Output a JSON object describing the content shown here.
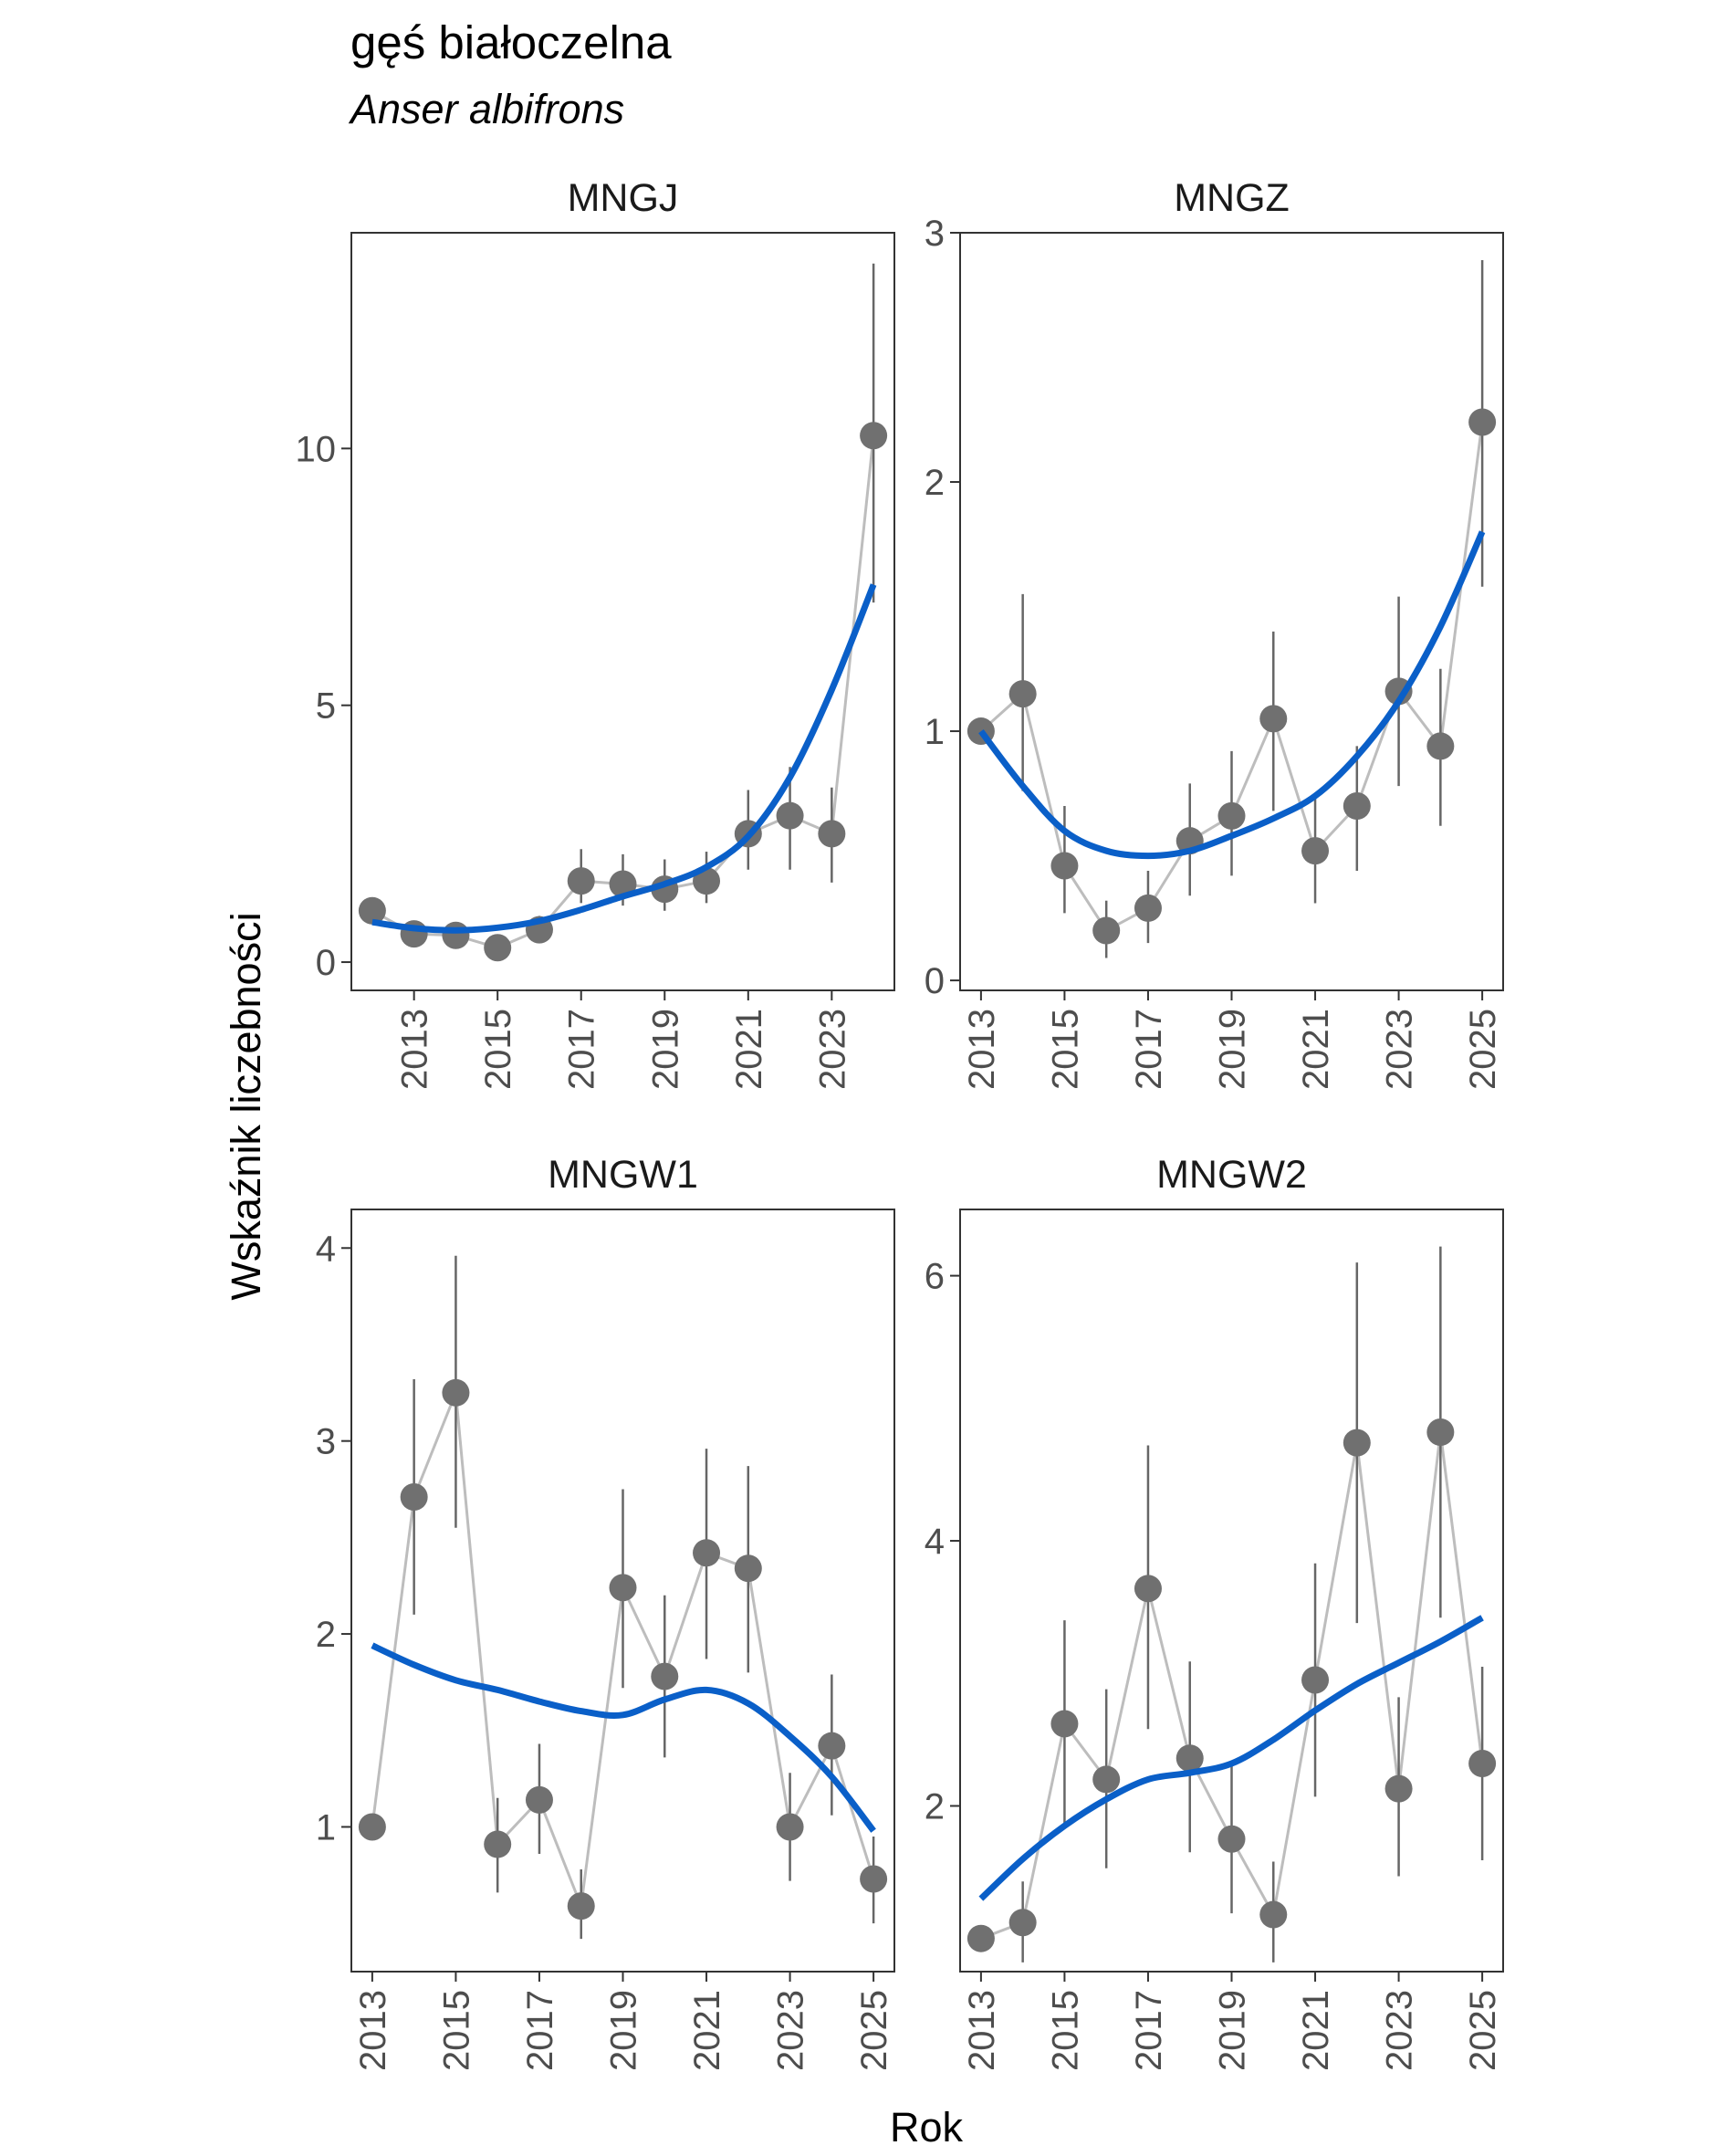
{
  "chart_data": {
    "type": "line",
    "title": "gęś białoczelna",
    "subtitle": "Anser albifrons",
    "xlabel": "Rok",
    "ylabel": "Wskaźnik liczebności",
    "colors": {
      "points": "#707070",
      "connector": "#bdbdbd",
      "errorbar": "#666666",
      "trend": "#0a5fc8"
    },
    "panels": [
      {
        "name": "MNGJ",
        "xlim": [
          2011.5,
          2024.5
        ],
        "ylim": [
          -0.55,
          14.2
        ],
        "x_ticks": [
          2013,
          2015,
          2017,
          2019,
          2021,
          2023
        ],
        "y_ticks": [
          0,
          5,
          10
        ],
        "x": [
          2012,
          2013,
          2014,
          2015,
          2016,
          2017,
          2018,
          2019,
          2020,
          2021,
          2022,
          2023,
          2024
        ],
        "values": [
          1.0,
          0.55,
          0.52,
          0.28,
          0.63,
          1.58,
          1.52,
          1.42,
          1.58,
          2.5,
          2.85,
          2.5,
          10.25
        ],
        "lower": [
          null,
          0.4,
          0.38,
          0.18,
          0.45,
          1.15,
          1.1,
          1.0,
          1.15,
          1.8,
          1.8,
          1.55,
          7.0
        ],
        "upper": [
          null,
          0.8,
          0.75,
          0.45,
          0.9,
          2.2,
          2.1,
          2.0,
          2.15,
          3.35,
          3.8,
          3.4,
          13.6
        ],
        "trend": [
          0.78,
          0.66,
          0.62,
          0.67,
          0.8,
          1.02,
          1.28,
          1.52,
          1.85,
          2.45,
          3.6,
          5.3,
          7.35
        ]
      },
      {
        "name": "MNGZ",
        "xlim": [
          2012.5,
          2025.5
        ],
        "ylim": [
          -0.04,
          3.0
        ],
        "x_ticks": [
          2013,
          2015,
          2017,
          2019,
          2021,
          2023,
          2025
        ],
        "y_ticks": [
          0,
          1,
          2,
          3
        ],
        "x": [
          2013,
          2014,
          2015,
          2016,
          2017,
          2018,
          2019,
          2020,
          2021,
          2022,
          2023,
          2024,
          2025
        ],
        "values": [
          1.0,
          1.15,
          0.46,
          0.2,
          0.29,
          0.56,
          0.66,
          1.05,
          0.52,
          0.7,
          1.16,
          0.94,
          2.24
        ],
        "lower": [
          null,
          0.76,
          0.27,
          0.09,
          0.15,
          0.34,
          0.42,
          0.68,
          0.31,
          0.44,
          0.78,
          0.62,
          1.58
        ],
        "upper": [
          null,
          1.55,
          0.7,
          0.32,
          0.44,
          0.79,
          0.92,
          1.4,
          0.75,
          0.94,
          1.54,
          1.25,
          2.89
        ],
        "trend": [
          1.0,
          0.78,
          0.6,
          0.52,
          0.5,
          0.52,
          0.58,
          0.65,
          0.74,
          0.9,
          1.12,
          1.42,
          1.8
        ]
      },
      {
        "name": "MNGW1",
        "xlim": [
          2012.5,
          2025.5
        ],
        "ylim": [
          0.25,
          4.2
        ],
        "x_ticks": [
          2013,
          2015,
          2017,
          2019,
          2021,
          2023,
          2025
        ],
        "y_ticks": [
          1,
          2,
          3,
          4
        ],
        "x": [
          2013,
          2014,
          2015,
          2016,
          2017,
          2018,
          2019,
          2020,
          2021,
          2022,
          2023,
          2024,
          2025
        ],
        "values": [
          1.0,
          2.71,
          3.25,
          0.91,
          1.14,
          0.59,
          2.24,
          1.78,
          2.42,
          2.34,
          1.0,
          1.42,
          0.73
        ],
        "lower": [
          null,
          2.1,
          2.55,
          0.66,
          0.86,
          0.42,
          1.72,
          1.36,
          1.87,
          1.8,
          0.72,
          1.06,
          0.5
        ],
        "upper": [
          null,
          3.32,
          3.96,
          1.15,
          1.43,
          0.78,
          2.75,
          2.2,
          2.96,
          2.87,
          1.28,
          1.79,
          0.95
        ],
        "trend": [
          1.94,
          1.84,
          1.76,
          1.71,
          1.65,
          1.6,
          1.58,
          1.66,
          1.71,
          1.64,
          1.47,
          1.26,
          0.98
        ]
      },
      {
        "name": "MNGW2",
        "xlim": [
          2012.5,
          2025.5
        ],
        "ylim": [
          0.75,
          6.5
        ],
        "x_ticks": [
          2013,
          2015,
          2017,
          2019,
          2021,
          2023,
          2025
        ],
        "y_ticks": [
          2,
          4,
          6
        ],
        "x": [
          2013,
          2014,
          2015,
          2016,
          2017,
          2018,
          2019,
          2020,
          2021,
          2022,
          2023,
          2024,
          2025
        ],
        "values": [
          1.0,
          1.12,
          2.62,
          2.2,
          3.64,
          2.36,
          1.75,
          1.18,
          2.95,
          4.74,
          2.13,
          4.82,
          2.32
        ],
        "lower": [
          null,
          0.82,
          1.85,
          1.53,
          2.58,
          1.65,
          1.19,
          0.82,
          2.07,
          3.38,
          1.47,
          3.42,
          1.59
        ],
        "upper": [
          null,
          1.43,
          3.4,
          2.88,
          4.72,
          3.09,
          2.32,
          1.58,
          3.83,
          6.1,
          2.82,
          6.22,
          3.05
        ],
        "trend": [
          1.3,
          1.6,
          1.85,
          2.05,
          2.2,
          2.25,
          2.32,
          2.5,
          2.72,
          2.92,
          3.08,
          3.24,
          3.42
        ]
      }
    ]
  }
}
